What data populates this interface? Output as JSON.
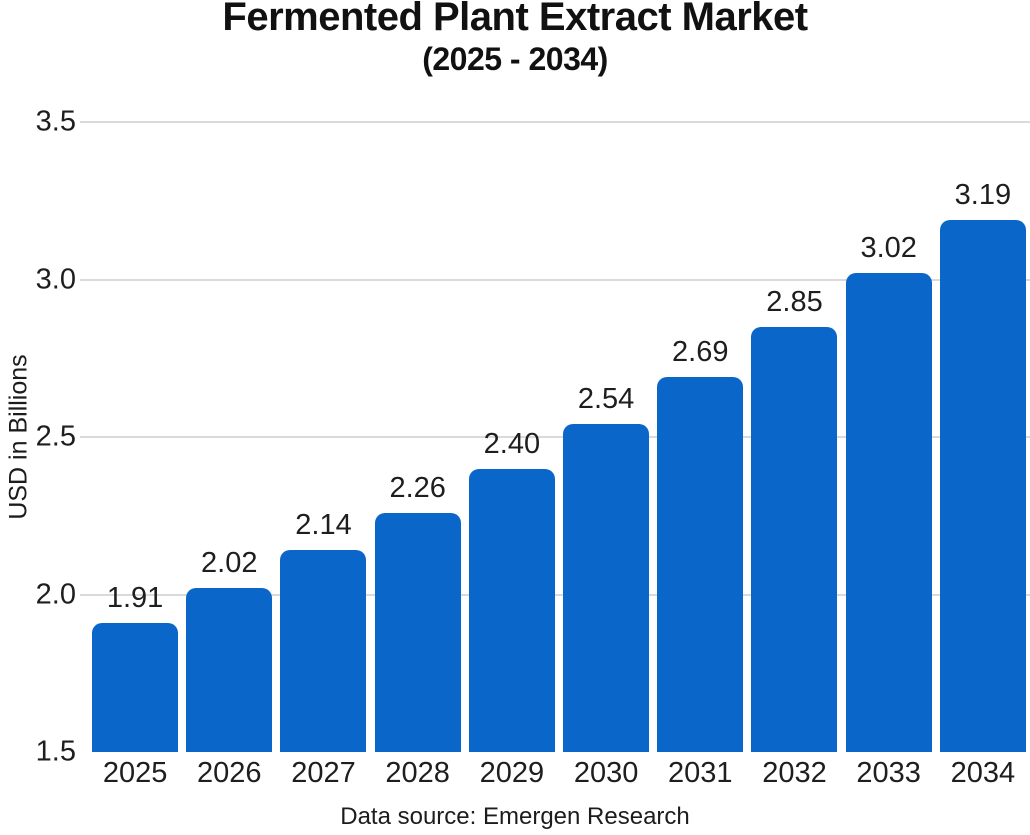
{
  "chart": {
    "title": "Fermented Plant Extract Market",
    "subtitle": "(2025 - 2034)",
    "ylabel": "USD in Billions",
    "source": "Data source: Emergen Research"
  },
  "chart_data": {
    "type": "bar",
    "title": "Fermented Plant Extract Market",
    "subtitle": "(2025 - 2034)",
    "categories": [
      "2025",
      "2026",
      "2027",
      "2028",
      "2029",
      "2030",
      "2031",
      "2032",
      "2033",
      "2034"
    ],
    "values": [
      1.91,
      2.02,
      2.14,
      2.26,
      2.4,
      2.54,
      2.69,
      2.85,
      3.02,
      3.19
    ],
    "value_labels": [
      "1.91",
      "2.02",
      "2.14",
      "2.26",
      "2.40",
      "2.54",
      "2.69",
      "2.85",
      "3.02",
      "3.19"
    ],
    "xlabel": "",
    "ylabel": "USD in Billions",
    "ylim": [
      1.5,
      3.5
    ],
    "yticks": [
      "1.5",
      "2.0",
      "2.5",
      "3.0",
      "3.5"
    ],
    "grid": "horizontal",
    "legend": "none",
    "bar_color": "#0b66c9",
    "gridline_color": "#dadada",
    "text_color": "#1e1e1e",
    "source": "Data source: Emergen Research"
  }
}
